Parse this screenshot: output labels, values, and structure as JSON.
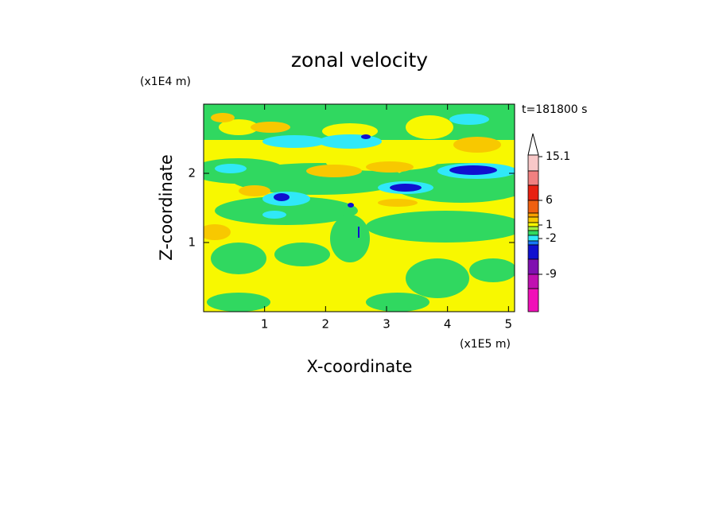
{
  "chart_data": {
    "type": "contour",
    "title": "zonal velocity",
    "x_label": "X-coordinate",
    "y_label": "Z-coordinate",
    "x_unit": "(x1E5 m)",
    "y_unit": "(x1E4 m)",
    "time_label": "t=181800 s",
    "xlim": [
      0,
      5.1
    ],
    "ylim": [
      0,
      3
    ],
    "xticks": [
      1,
      2,
      3,
      4,
      5
    ],
    "yticks": [
      1,
      2
    ],
    "colorbar_colors": [
      "#f8c8c8",
      "#f08080",
      "#e82010",
      "#f06010",
      "#f8a000",
      "#f8c800",
      "#f8f800",
      "#a0f040",
      "#30d860",
      "#30e8f8",
      "#1878f8",
      "#1010d0",
      "#8010b0",
      "#c010b0",
      "#f010b8"
    ],
    "colorbar_ticks": [
      {
        "value": 15.1,
        "label": "15.1"
      },
      6,
      1,
      -2,
      -9
    ]
  }
}
